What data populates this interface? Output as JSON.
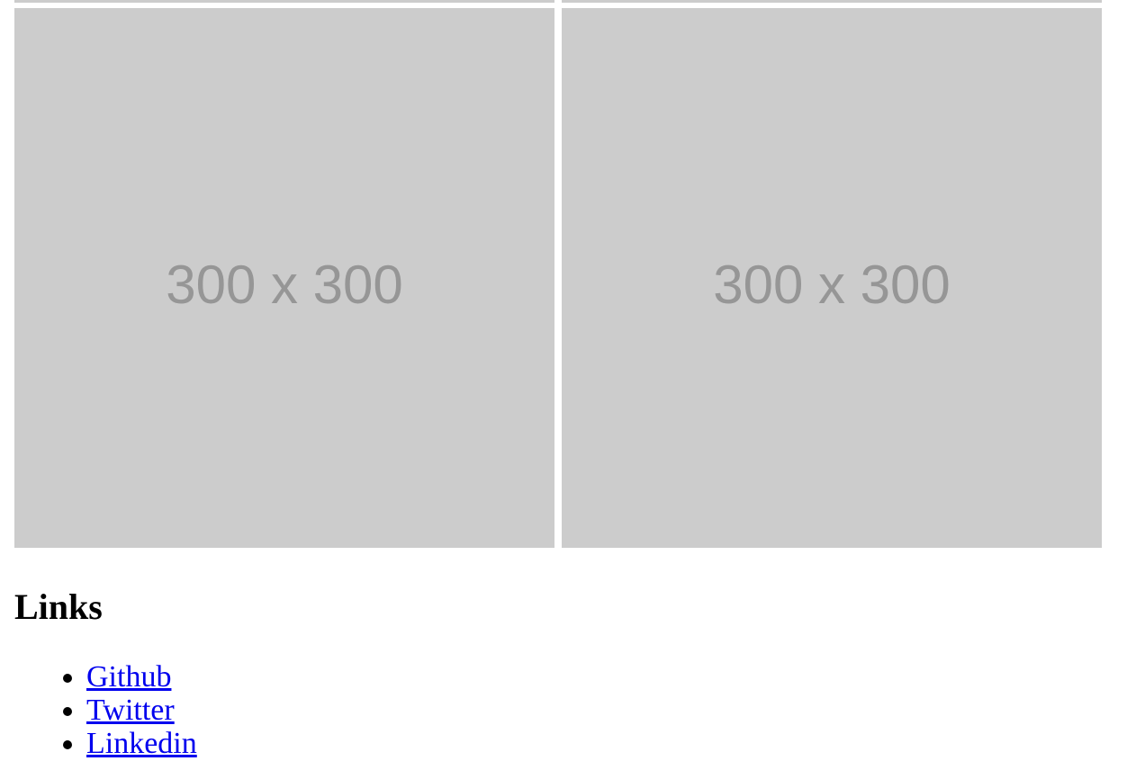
{
  "gallery": {
    "images": [
      {
        "label": "300 x 300"
      },
      {
        "label": "300 x 300"
      }
    ]
  },
  "links": {
    "heading": "Links",
    "items": [
      {
        "label": "Github"
      },
      {
        "label": "Twitter"
      },
      {
        "label": "Linkedin"
      }
    ]
  },
  "colors": {
    "placeholder_bg": "#cccccc",
    "placeholder_text": "#969696",
    "link": "#0000ee"
  }
}
